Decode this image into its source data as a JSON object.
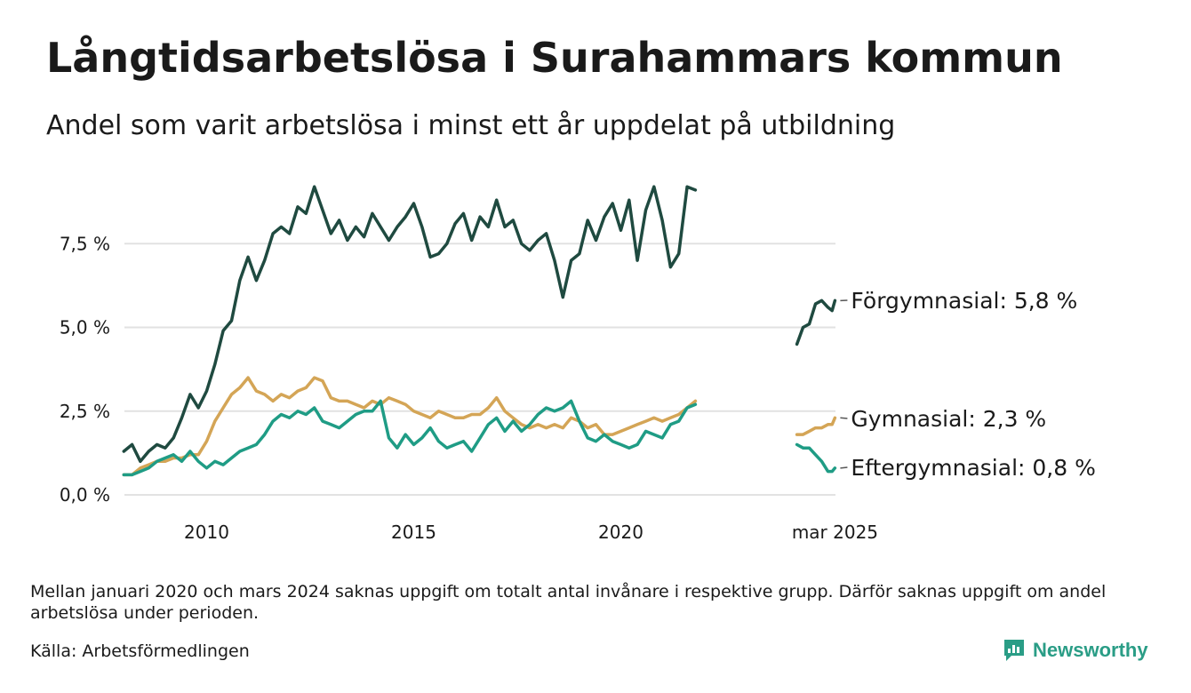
{
  "title": "Långtidsarbetslösa i Surahammars kommun",
  "subtitle": "Andel som varit arbetslösa i minst ett år uppdelat på utbildning",
  "note": "Mellan januari 2020 och mars 2024 saknas uppgift om totalt antal invånare i respektive grupp. Därför saknas uppgift om andel arbetslösa under perioden.",
  "source": "Källa: Arbetsförmedlingen",
  "brand": {
    "name": "Newsworthy",
    "icon": "bar-chart-logo-icon",
    "color": "#2a9d86"
  },
  "chart_data": {
    "type": "line",
    "ylim": [
      0,
      10
    ],
    "y_ticks": [
      0,
      2.5,
      5,
      7.5
    ],
    "y_tick_labels": [
      "0,0 %",
      "2,5 %",
      "5,0 %",
      "7,5 %"
    ],
    "x_ticks": [
      2010,
      2015,
      2020,
      2025.17
    ],
    "x_tick_labels": [
      "2010",
      "2015",
      "2020",
      "mar 2025"
    ],
    "grid": "horizontal",
    "legend": "end-of-line labels",
    "series": [
      {
        "name": "Förgymnasial",
        "label": "Förgymnasial: 5,8 %",
        "color": "#1f4a40",
        "segments": [
          [
            [
              2008.0,
              1.3
            ],
            [
              2008.2,
              1.5
            ],
            [
              2008.4,
              1.0
            ],
            [
              2008.6,
              1.3
            ],
            [
              2008.8,
              1.5
            ],
            [
              2009.0,
              1.4
            ],
            [
              2009.2,
              1.7
            ],
            [
              2009.4,
              2.3
            ],
            [
              2009.6,
              3.0
            ],
            [
              2009.8,
              2.6
            ],
            [
              2010.0,
              3.1
            ],
            [
              2010.2,
              3.9
            ],
            [
              2010.4,
              4.9
            ],
            [
              2010.6,
              5.2
            ],
            [
              2010.8,
              6.4
            ],
            [
              2011.0,
              7.1
            ],
            [
              2011.2,
              6.4
            ],
            [
              2011.4,
              7.0
            ],
            [
              2011.6,
              7.8
            ],
            [
              2011.8,
              8.0
            ],
            [
              2012.0,
              7.8
            ],
            [
              2012.2,
              8.6
            ],
            [
              2012.4,
              8.4
            ],
            [
              2012.6,
              9.2
            ],
            [
              2012.8,
              8.5
            ],
            [
              2013.0,
              7.8
            ],
            [
              2013.2,
              8.2
            ],
            [
              2013.4,
              7.6
            ],
            [
              2013.6,
              8.0
            ],
            [
              2013.8,
              7.7
            ],
            [
              2014.0,
              8.4
            ],
            [
              2014.2,
              8.0
            ],
            [
              2014.4,
              7.6
            ],
            [
              2014.6,
              8.0
            ],
            [
              2014.8,
              8.3
            ],
            [
              2015.0,
              8.7
            ],
            [
              2015.2,
              8.0
            ],
            [
              2015.4,
              7.1
            ],
            [
              2015.6,
              7.2
            ],
            [
              2015.8,
              7.5
            ],
            [
              2016.0,
              8.1
            ],
            [
              2016.2,
              8.4
            ],
            [
              2016.4,
              7.6
            ],
            [
              2016.6,
              8.3
            ],
            [
              2016.8,
              8.0
            ],
            [
              2017.0,
              8.8
            ],
            [
              2017.2,
              8.0
            ],
            [
              2017.4,
              8.2
            ],
            [
              2017.6,
              7.5
            ],
            [
              2017.8,
              7.3
            ],
            [
              2018.0,
              7.6
            ],
            [
              2018.2,
              7.8
            ],
            [
              2018.4,
              7.0
            ],
            [
              2018.6,
              5.9
            ],
            [
              2018.8,
              7.0
            ],
            [
              2019.0,
              7.2
            ],
            [
              2019.2,
              8.2
            ],
            [
              2019.4,
              7.6
            ],
            [
              2019.6,
              8.3
            ],
            [
              2019.8,
              8.7
            ],
            [
              2020.0,
              7.9
            ],
            [
              2020.2,
              8.8
            ],
            [
              2020.4,
              7.0
            ],
            [
              2020.6,
              8.5
            ],
            [
              2020.8,
              9.2
            ],
            [
              2021.0,
              8.2
            ],
            [
              2021.2,
              6.8
            ],
            [
              2021.4,
              7.2
            ],
            [
              2021.6,
              9.2
            ],
            [
              2021.8,
              9.1
            ]
          ],
          [
            [
              2024.25,
              4.5
            ],
            [
              2024.4,
              5.0
            ],
            [
              2024.55,
              5.1
            ],
            [
              2024.7,
              5.7
            ],
            [
              2024.85,
              5.8
            ],
            [
              2025.0,
              5.6
            ],
            [
              2025.1,
              5.5
            ],
            [
              2025.17,
              5.8
            ]
          ]
        ]
      },
      {
        "name": "Gymnasial",
        "label": "Gymnasial: 2,3 %",
        "color": "#d4a556",
        "segments": [
          [
            [
              2008.0,
              0.6
            ],
            [
              2008.2,
              0.6
            ],
            [
              2008.4,
              0.8
            ],
            [
              2008.6,
              0.9
            ],
            [
              2008.8,
              1.0
            ],
            [
              2009.0,
              1.0
            ],
            [
              2009.2,
              1.1
            ],
            [
              2009.4,
              1.1
            ],
            [
              2009.6,
              1.2
            ],
            [
              2009.8,
              1.2
            ],
            [
              2010.0,
              1.6
            ],
            [
              2010.2,
              2.2
            ],
            [
              2010.4,
              2.6
            ],
            [
              2010.6,
              3.0
            ],
            [
              2010.8,
              3.2
            ],
            [
              2011.0,
              3.5
            ],
            [
              2011.2,
              3.1
            ],
            [
              2011.4,
              3.0
            ],
            [
              2011.6,
              2.8
            ],
            [
              2011.8,
              3.0
            ],
            [
              2012.0,
              2.9
            ],
            [
              2012.2,
              3.1
            ],
            [
              2012.4,
              3.2
            ],
            [
              2012.6,
              3.5
            ],
            [
              2012.8,
              3.4
            ],
            [
              2013.0,
              2.9
            ],
            [
              2013.2,
              2.8
            ],
            [
              2013.4,
              2.8
            ],
            [
              2013.6,
              2.7
            ],
            [
              2013.8,
              2.6
            ],
            [
              2014.0,
              2.8
            ],
            [
              2014.2,
              2.7
            ],
            [
              2014.4,
              2.9
            ],
            [
              2014.6,
              2.8
            ],
            [
              2014.8,
              2.7
            ],
            [
              2015.0,
              2.5
            ],
            [
              2015.2,
              2.4
            ],
            [
              2015.4,
              2.3
            ],
            [
              2015.6,
              2.5
            ],
            [
              2015.8,
              2.4
            ],
            [
              2016.0,
              2.3
            ],
            [
              2016.2,
              2.3
            ],
            [
              2016.4,
              2.4
            ],
            [
              2016.6,
              2.4
            ],
            [
              2016.8,
              2.6
            ],
            [
              2017.0,
              2.9
            ],
            [
              2017.2,
              2.5
            ],
            [
              2017.4,
              2.3
            ],
            [
              2017.6,
              2.1
            ],
            [
              2017.8,
              2.0
            ],
            [
              2018.0,
              2.1
            ],
            [
              2018.2,
              2.0
            ],
            [
              2018.4,
              2.1
            ],
            [
              2018.6,
              2.0
            ],
            [
              2018.8,
              2.3
            ],
            [
              2019.0,
              2.2
            ],
            [
              2019.2,
              2.0
            ],
            [
              2019.4,
              2.1
            ],
            [
              2019.6,
              1.8
            ],
            [
              2019.8,
              1.8
            ],
            [
              2020.0,
              1.9
            ],
            [
              2020.2,
              2.0
            ],
            [
              2020.4,
              2.1
            ],
            [
              2020.6,
              2.2
            ],
            [
              2020.8,
              2.3
            ],
            [
              2021.0,
              2.2
            ],
            [
              2021.2,
              2.3
            ],
            [
              2021.4,
              2.4
            ],
            [
              2021.6,
              2.6
            ],
            [
              2021.8,
              2.8
            ]
          ],
          [
            [
              2024.25,
              1.8
            ],
            [
              2024.4,
              1.8
            ],
            [
              2024.55,
              1.9
            ],
            [
              2024.7,
              2.0
            ],
            [
              2024.85,
              2.0
            ],
            [
              2025.0,
              2.1
            ],
            [
              2025.1,
              2.1
            ],
            [
              2025.17,
              2.3
            ]
          ]
        ]
      },
      {
        "name": "Eftergymnasial",
        "label": "Eftergymnasial: 0,8 %",
        "color": "#1f9c85",
        "segments": [
          [
            [
              2008.0,
              0.6
            ],
            [
              2008.2,
              0.6
            ],
            [
              2008.4,
              0.7
            ],
            [
              2008.6,
              0.8
            ],
            [
              2008.8,
              1.0
            ],
            [
              2009.0,
              1.1
            ],
            [
              2009.2,
              1.2
            ],
            [
              2009.4,
              1.0
            ],
            [
              2009.6,
              1.3
            ],
            [
              2009.8,
              1.0
            ],
            [
              2010.0,
              0.8
            ],
            [
              2010.2,
              1.0
            ],
            [
              2010.4,
              0.9
            ],
            [
              2010.6,
              1.1
            ],
            [
              2010.8,
              1.3
            ],
            [
              2011.0,
              1.4
            ],
            [
              2011.2,
              1.5
            ],
            [
              2011.4,
              1.8
            ],
            [
              2011.6,
              2.2
            ],
            [
              2011.8,
              2.4
            ],
            [
              2012.0,
              2.3
            ],
            [
              2012.2,
              2.5
            ],
            [
              2012.4,
              2.4
            ],
            [
              2012.6,
              2.6
            ],
            [
              2012.8,
              2.2
            ],
            [
              2013.0,
              2.1
            ],
            [
              2013.2,
              2.0
            ],
            [
              2013.4,
              2.2
            ],
            [
              2013.6,
              2.4
            ],
            [
              2013.8,
              2.5
            ],
            [
              2014.0,
              2.5
            ],
            [
              2014.2,
              2.8
            ],
            [
              2014.4,
              1.7
            ],
            [
              2014.6,
              1.4
            ],
            [
              2014.8,
              1.8
            ],
            [
              2015.0,
              1.5
            ],
            [
              2015.2,
              1.7
            ],
            [
              2015.4,
              2.0
            ],
            [
              2015.6,
              1.6
            ],
            [
              2015.8,
              1.4
            ],
            [
              2016.0,
              1.5
            ],
            [
              2016.2,
              1.6
            ],
            [
              2016.4,
              1.3
            ],
            [
              2016.6,
              1.7
            ],
            [
              2016.8,
              2.1
            ],
            [
              2017.0,
              2.3
            ],
            [
              2017.2,
              1.9
            ],
            [
              2017.4,
              2.2
            ],
            [
              2017.6,
              1.9
            ],
            [
              2017.8,
              2.1
            ],
            [
              2018.0,
              2.4
            ],
            [
              2018.2,
              2.6
            ],
            [
              2018.4,
              2.5
            ],
            [
              2018.6,
              2.6
            ],
            [
              2018.8,
              2.8
            ],
            [
              2019.0,
              2.2
            ],
            [
              2019.2,
              1.7
            ],
            [
              2019.4,
              1.6
            ],
            [
              2019.6,
              1.8
            ],
            [
              2019.8,
              1.6
            ],
            [
              2020.0,
              1.5
            ],
            [
              2020.2,
              1.4
            ],
            [
              2020.4,
              1.5
            ],
            [
              2020.6,
              1.9
            ],
            [
              2020.8,
              1.8
            ],
            [
              2021.0,
              1.7
            ],
            [
              2021.2,
              2.1
            ],
            [
              2021.4,
              2.2
            ],
            [
              2021.6,
              2.6
            ],
            [
              2021.8,
              2.7
            ]
          ],
          [
            [
              2024.25,
              1.5
            ],
            [
              2024.4,
              1.4
            ],
            [
              2024.55,
              1.4
            ],
            [
              2024.7,
              1.2
            ],
            [
              2024.85,
              1.0
            ],
            [
              2025.0,
              0.7
            ],
            [
              2025.1,
              0.7
            ],
            [
              2025.17,
              0.8
            ]
          ]
        ]
      }
    ]
  }
}
